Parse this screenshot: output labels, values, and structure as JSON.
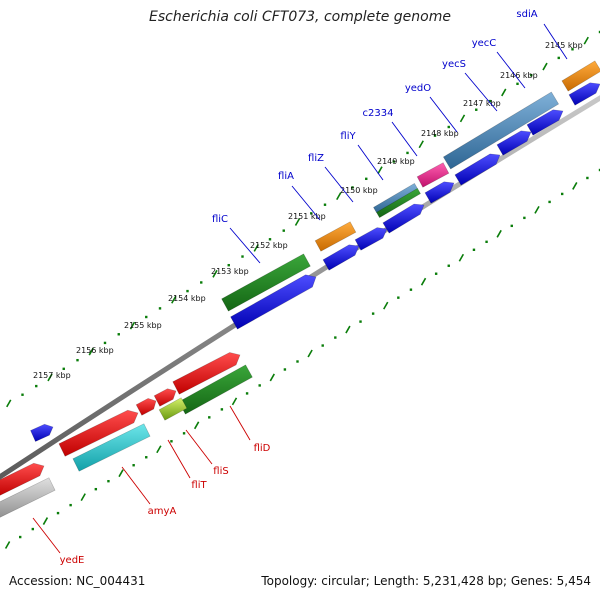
{
  "title": "Escherichia coli CFT073, complete genome",
  "footer": {
    "accession_label": "Accession:",
    "accession": "NC_004431",
    "topology_label": "Topology:",
    "topology": "circular",
    "length_label": "Length:",
    "length": "5,231,428 bp",
    "genes_label": "Genes:",
    "genes": "5,454"
  },
  "colors": {
    "forward_label": "#0000cc",
    "reverse_label": "#cc0000",
    "backbone": "#888888",
    "tick": "#0a7d0a",
    "cds_blue": "#1a1ae6",
    "cds_red": "#e61a1a",
    "cds_green": "#1f8a1f",
    "cds_orange": "#f08c0a",
    "cds_steel": "#4a86b8",
    "cds_pink": "#e6208c",
    "cds_cyan": "#22c4cc",
    "cds_gray": "#b4b4b4",
    "cds_lime": "#9acd32"
  },
  "kbp_ticks": [
    "2145 kbp",
    "2146 kbp",
    "2147 kbp",
    "2148 kbp",
    "2149 kbp",
    "2150 kbp",
    "2151 kbp",
    "2152 kbp",
    "2153 kbp",
    "2154 kbp",
    "2155 kbp",
    "2156 kbp",
    "2157 kbp"
  ],
  "forward_genes": [
    "sdiA",
    "yecC",
    "yecS",
    "yedO",
    "c2334",
    "fliY",
    "fliZ",
    "fliA",
    "fliC"
  ],
  "reverse_genes": [
    "fliD",
    "fliS",
    "fliT",
    "amyA",
    "yedE"
  ]
}
